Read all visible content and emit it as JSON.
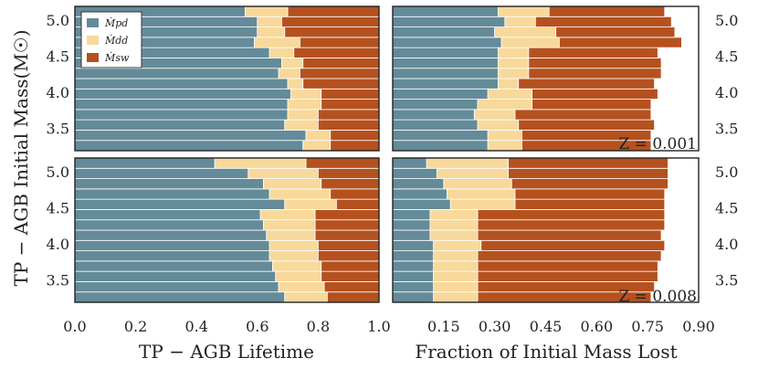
{
  "colors": {
    "pd": "#648b99",
    "dd": "#f8d99b",
    "sw": "#b5511f",
    "frame": "#222222",
    "separator": "#ffffff"
  },
  "legend": {
    "items": [
      {
        "key": "pd",
        "label": "Ṁpd"
      },
      {
        "key": "dd",
        "label": "Ṁdd"
      },
      {
        "key": "sw",
        "label": "Ṁsw"
      }
    ]
  },
  "chart_data": [
    {
      "type": "bar",
      "orientation": "horizontal",
      "stacked": true,
      "panel": "top-left",
      "metallicity": "Z = 0.001",
      "xlabel": "TP − AGB Lifetime",
      "ylabel": "TP − AGB Initial Mass(M☉)",
      "xlim": [
        0.0,
        1.0
      ],
      "ylim": [
        3.2,
        5.2
      ],
      "categories": [
        3.3,
        3.5,
        3.6,
        3.8,
        3.9,
        4.0,
        4.1,
        4.3,
        4.4,
        4.5,
        4.7,
        4.8,
        4.9,
        5.1
      ],
      "series": [
        {
          "name": "Ṁpd",
          "values": [
            0.75,
            0.76,
            0.69,
            0.7,
            0.7,
            0.71,
            0.7,
            0.67,
            0.68,
            0.64,
            0.59,
            0.6,
            0.6,
            0.56
          ]
        },
        {
          "name": "Ṁdd",
          "values": [
            0.09,
            0.08,
            0.11,
            0.1,
            0.11,
            0.1,
            0.05,
            0.07,
            0.07,
            0.08,
            0.15,
            0.09,
            0.08,
            0.14
          ]
        },
        {
          "name": "Ṁsw",
          "values": [
            0.16,
            0.16,
            0.2,
            0.2,
            0.19,
            0.19,
            0.25,
            0.26,
            0.25,
            0.28,
            0.26,
            0.31,
            0.32,
            0.3
          ]
        }
      ],
      "xticks": [],
      "yticks": [
        "3.5",
        "4.0",
        "4.5",
        "5.0"
      ]
    },
    {
      "type": "bar",
      "orientation": "horizontal",
      "stacked": true,
      "panel": "top-right",
      "metallicity": "Z = 0.001",
      "xlabel": "Fraction of Initial Mass Lost",
      "xlim": [
        0.0,
        0.9
      ],
      "ylim": [
        3.2,
        5.2
      ],
      "categories": [
        3.3,
        3.5,
        3.6,
        3.8,
        3.9,
        4.0,
        4.1,
        4.3,
        4.4,
        4.5,
        4.7,
        4.8,
        4.9,
        5.1
      ],
      "series": [
        {
          "name": "Ṁpd",
          "values": [
            0.28,
            0.28,
            0.25,
            0.24,
            0.25,
            0.28,
            0.31,
            0.31,
            0.31,
            0.31,
            0.32,
            0.3,
            0.33,
            0.31
          ]
        },
        {
          "name": "Ṁdd",
          "values": [
            0.1,
            0.1,
            0.12,
            0.12,
            0.16,
            0.13,
            0.06,
            0.09,
            0.09,
            0.09,
            0.17,
            0.18,
            0.09,
            0.15
          ]
        },
        {
          "name": "Ṁsw",
          "values": [
            0.38,
            0.38,
            0.4,
            0.4,
            0.35,
            0.37,
            0.4,
            0.39,
            0.39,
            0.38,
            0.36,
            0.35,
            0.4,
            0.34
          ]
        }
      ],
      "xticks": [],
      "yticks": [
        "3.5",
        "4.0",
        "4.5",
        "5.0"
      ]
    },
    {
      "type": "bar",
      "orientation": "horizontal",
      "stacked": true,
      "panel": "bottom-left",
      "metallicity": "Z = 0.008",
      "xlabel": "TP − AGB Lifetime",
      "xlim": [
        0.0,
        1.0
      ],
      "ylim": [
        3.2,
        5.2
      ],
      "categories": [
        3.3,
        3.5,
        3.6,
        3.8,
        3.9,
        4.0,
        4.1,
        4.3,
        4.4,
        4.5,
        4.7,
        4.8,
        4.9,
        5.1
      ],
      "series": [
        {
          "name": "Ṁpd",
          "values": [
            0.69,
            0.67,
            0.66,
            0.65,
            0.64,
            0.64,
            0.63,
            0.62,
            0.61,
            0.69,
            0.64,
            0.62,
            0.57,
            0.46
          ]
        },
        {
          "name": "Ṁdd",
          "values": [
            0.14,
            0.15,
            0.15,
            0.16,
            0.16,
            0.16,
            0.16,
            0.17,
            0.18,
            0.17,
            0.2,
            0.19,
            0.23,
            0.3
          ]
        },
        {
          "name": "Ṁsw",
          "values": [
            0.17,
            0.18,
            0.19,
            0.19,
            0.2,
            0.2,
            0.21,
            0.21,
            0.21,
            0.14,
            0.16,
            0.19,
            0.2,
            0.24
          ]
        }
      ],
      "xticks": [
        "0.0",
        "0.2",
        "0.4",
        "0.6",
        "0.8",
        "1.0"
      ],
      "yticks": [
        "3.5",
        "4.0",
        "4.5",
        "5.0"
      ]
    },
    {
      "type": "bar",
      "orientation": "horizontal",
      "stacked": true,
      "panel": "bottom-right",
      "metallicity": "Z = 0.008",
      "xlabel": "Fraction of Initial Mass Lost",
      "xlim": [
        0.0,
        0.9
      ],
      "ylim": [
        3.2,
        5.2
      ],
      "categories": [
        3.3,
        3.5,
        3.6,
        3.8,
        3.9,
        4.0,
        4.1,
        4.3,
        4.4,
        4.5,
        4.7,
        4.8,
        4.9,
        5.1
      ],
      "series": [
        {
          "name": "Ṁpd",
          "values": [
            0.12,
            0.12,
            0.12,
            0.12,
            0.12,
            0.12,
            0.11,
            0.11,
            0.11,
            0.17,
            0.16,
            0.15,
            0.13,
            0.1
          ]
        },
        {
          "name": "Ṁdd",
          "values": [
            0.13,
            0.13,
            0.13,
            0.13,
            0.13,
            0.14,
            0.14,
            0.14,
            0.14,
            0.19,
            0.2,
            0.2,
            0.21,
            0.24
          ]
        },
        {
          "name": "Ṁsw",
          "values": [
            0.51,
            0.52,
            0.53,
            0.53,
            0.54,
            0.54,
            0.54,
            0.55,
            0.55,
            0.44,
            0.44,
            0.46,
            0.47,
            0.47
          ]
        }
      ],
      "xticks": [
        "0.15",
        "0.30",
        "0.45",
        "0.60",
        "0.75",
        "0.90"
      ],
      "yticks": [
        "3.5",
        "4.0",
        "4.5",
        "5.0"
      ]
    }
  ],
  "labels": {
    "ylabel": "TP − AGB Initial Mass(M☉)",
    "xlabel_left": "TP − AGB Lifetime",
    "xlabel_right": "Fraction of Initial Mass Lost",
    "z_top": "Z = 0.001",
    "z_bottom": "Z = 0.008"
  }
}
